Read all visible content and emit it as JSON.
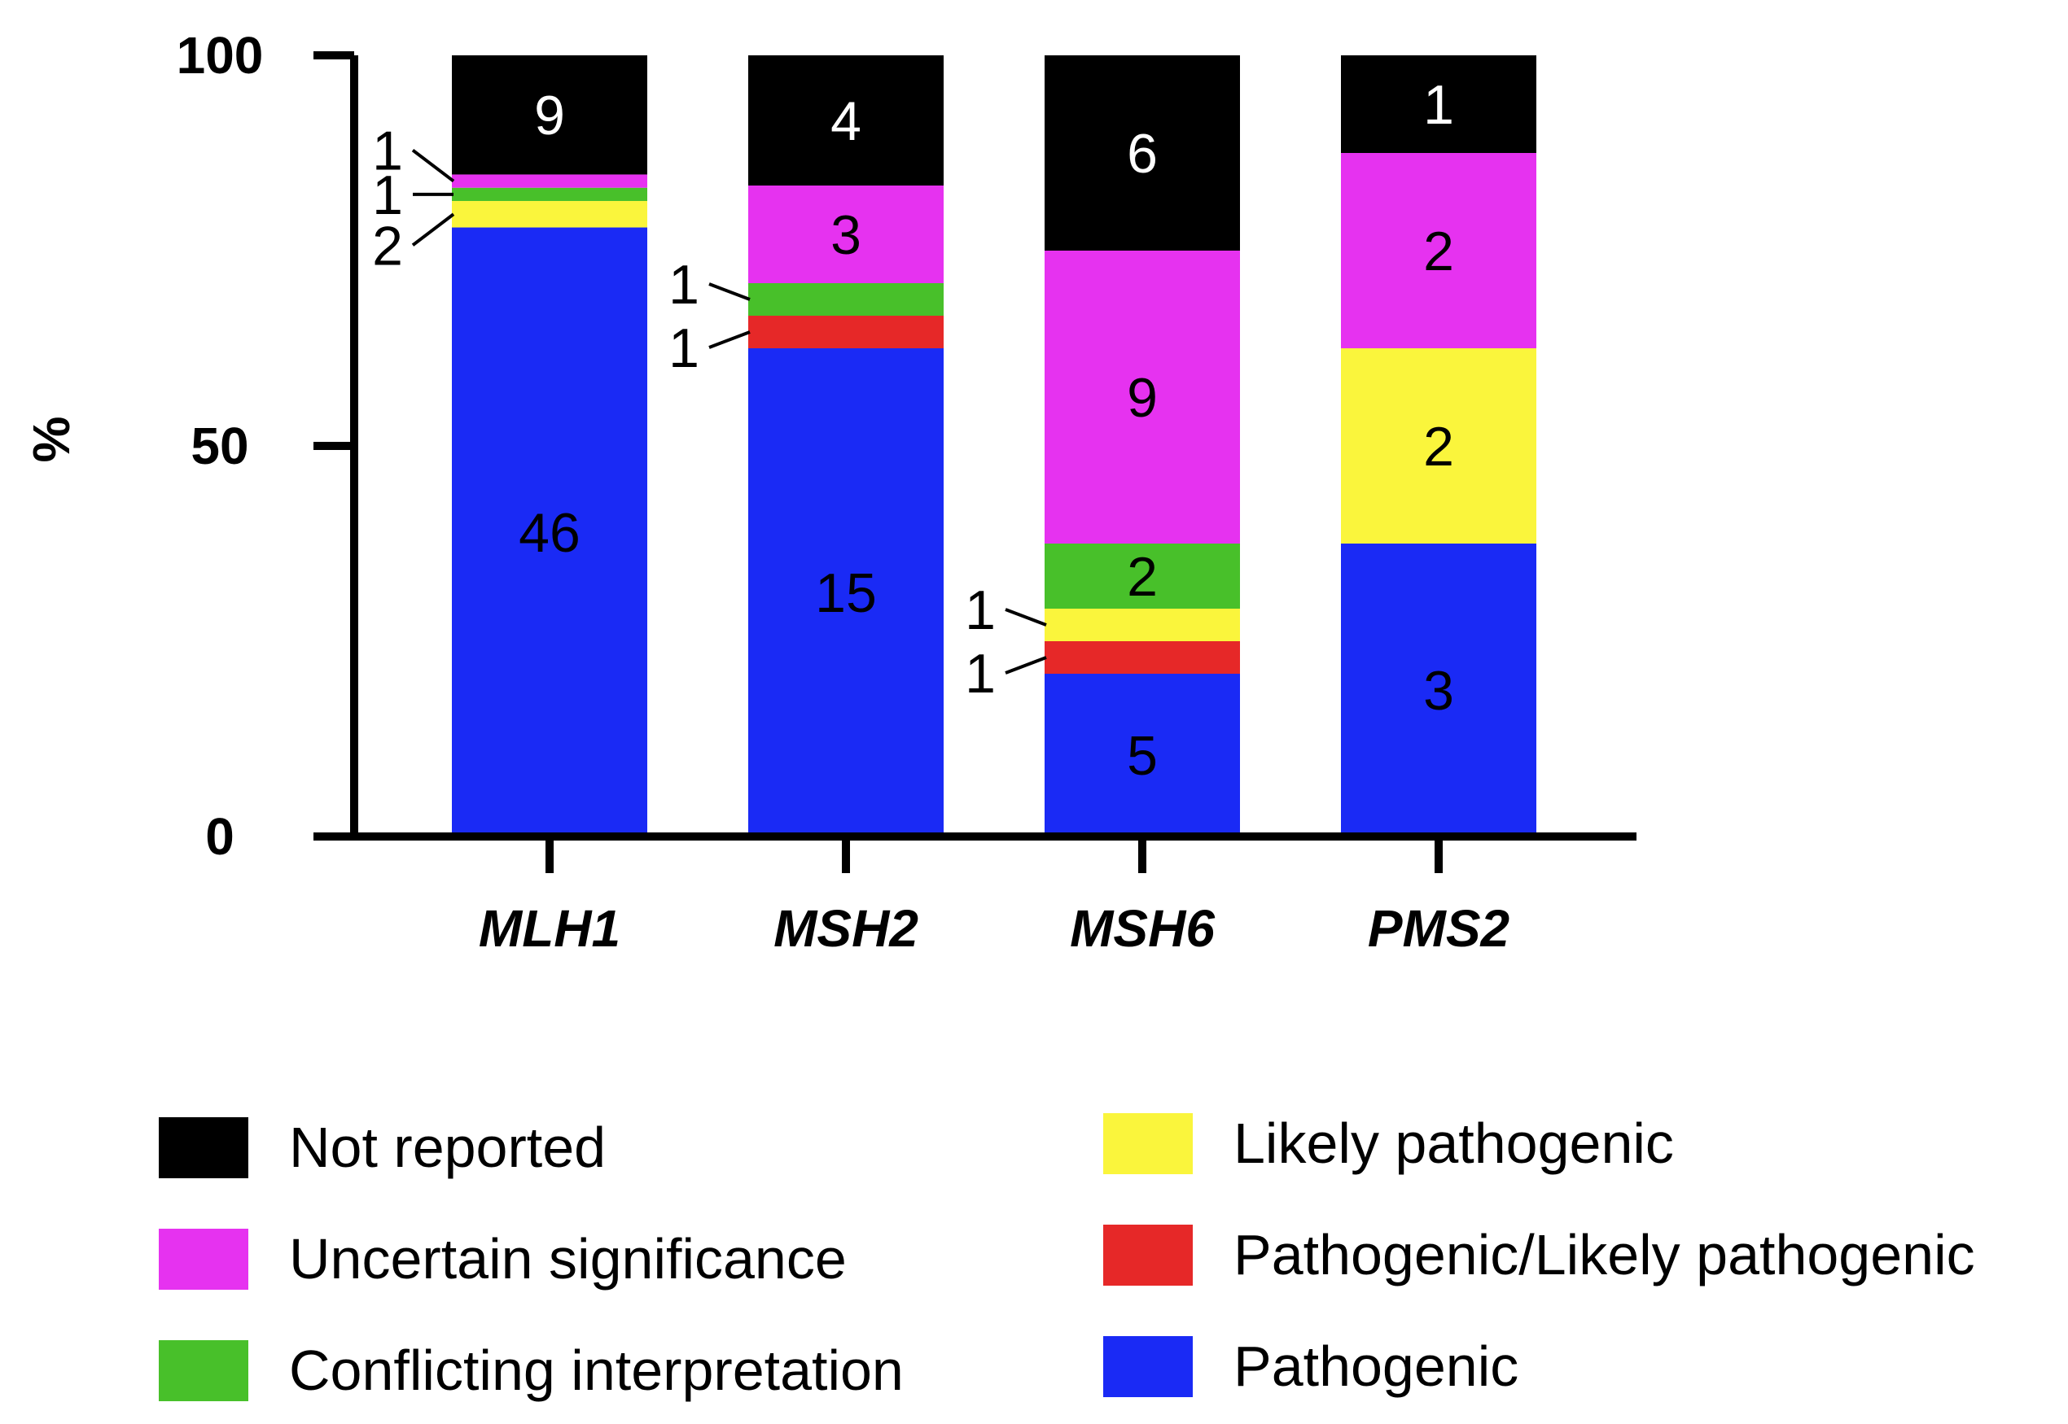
{
  "chart_data": {
    "type": "stacked-bar",
    "title": "",
    "xlabel": "",
    "ylabel": "%",
    "ylim": [
      0,
      100
    ],
    "yticks": [
      0,
      50,
      100
    ],
    "categories": [
      "MLH1",
      "MSH2",
      "MSH6",
      "PMS2"
    ],
    "series": [
      {
        "name": "Pathogenic",
        "color": "#1A2AF5",
        "counts": [
          46,
          15,
          5,
          3
        ]
      },
      {
        "name": "Pathogenic/Likely pathogenic",
        "color": "#E62828",
        "counts": [
          0,
          1,
          1,
          0
        ]
      },
      {
        "name": "Likely pathogenic",
        "color": "#FAF53C",
        "counts": [
          2,
          0,
          1,
          2
        ]
      },
      {
        "name": "Conflicting interpretation",
        "color": "#48C02A",
        "counts": [
          1,
          1,
          2,
          0
        ]
      },
      {
        "name": "Uncertain significance",
        "color": "#E632F0",
        "counts": [
          1,
          3,
          9,
          2
        ]
      },
      {
        "name": "Not reported",
        "color": "#000000",
        "counts": [
          9,
          4,
          6,
          1
        ]
      }
    ],
    "legend": [
      {
        "label": "Not reported",
        "color": "#000000"
      },
      {
        "label": "Uncertain significance",
        "color": "#E632F0"
      },
      {
        "label": "Conflicting interpretation",
        "color": "#48C02A"
      },
      {
        "label": "Likely pathogenic",
        "color": "#FAF53C"
      },
      {
        "label": "Pathogenic/Likely pathogenic",
        "color": "#E62828"
      },
      {
        "label": "Pathogenic",
        "color": "#1A2AF5"
      }
    ]
  }
}
